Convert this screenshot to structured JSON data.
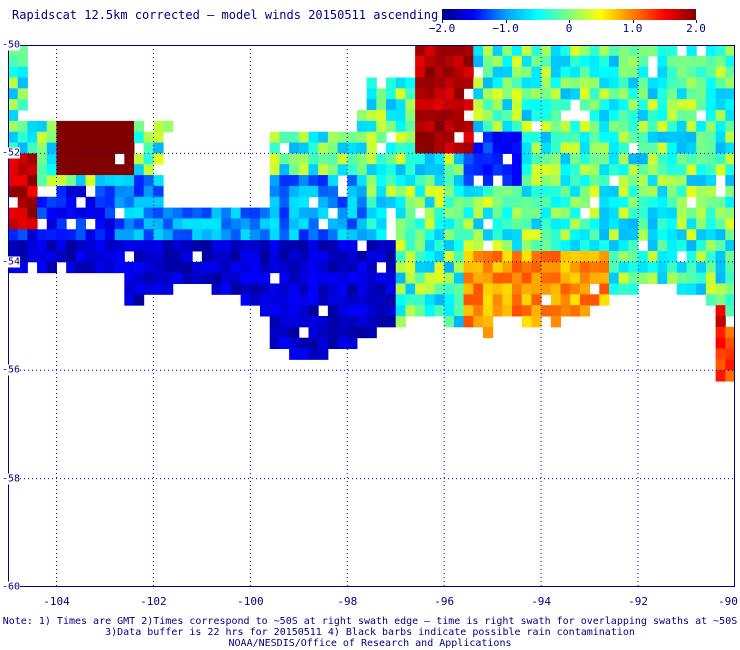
{
  "title": "Rapidscat 12.5km corrected – model winds 20150511 ascending",
  "colorbar": {
    "labels": [
      "−2.0",
      "−1.0",
      "0",
      "1.0",
      "2.0"
    ],
    "values": [
      -2.0,
      -1.0,
      0,
      1.0,
      2.0
    ],
    "colors": [
      "#000080",
      "#0000ff",
      "#00a0ff",
      "#00ffff",
      "#80ff80",
      "#ffff00",
      "#ff8000",
      "#ff0000",
      "#800000"
    ]
  },
  "map": {
    "lon_labels": [
      "-104",
      "-102",
      "-100",
      "-98",
      "-96",
      "-94",
      "-92",
      "-90"
    ],
    "lon_values": [
      -104,
      -102,
      -100,
      -98,
      -96,
      -94,
      -92,
      -90
    ],
    "lat_labels": [
      "-50",
      "-52",
      "-54",
      "-56",
      "-58",
      "-60"
    ],
    "lat_values": [
      -50,
      -52,
      -54,
      -56,
      -58,
      -60
    ],
    "lon_range": [
      -105,
      -90
    ],
    "lat_range": [
      -50,
      -60
    ],
    "grid_style": "dotted",
    "grid_color": "#0000c0"
  },
  "notes": {
    "line1": "Note: 1) Times are GMT 2)Times correspond to ~50S at right swath edge – time is right swath for overlapping swaths at ~50S",
    "line2": "3)Data buffer is 22 hrs for 20150511 4) Black barbs indicate possible rain contamination",
    "line3": "NOAA/NESDIS/Office of Research and Applications"
  }
}
